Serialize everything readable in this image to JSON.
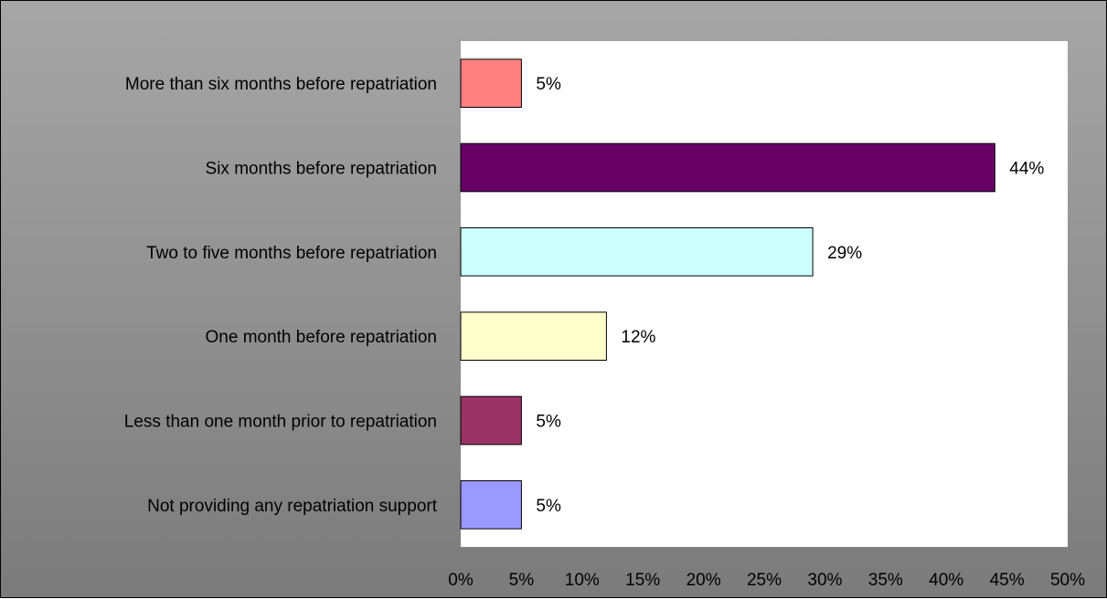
{
  "chart_data": {
    "type": "bar",
    "orientation": "horizontal",
    "categories": [
      "More than six months before repatriation",
      "Six months before repatriation",
      "Two to five months before repatriation",
      "One month before repatriation",
      "Less than one month prior to repatriation",
      "Not providing any repatriation support"
    ],
    "values": [
      5,
      44,
      29,
      12,
      5,
      5
    ],
    "value_labels": [
      "5%",
      "44%",
      "29%",
      "12%",
      "5%",
      "5%"
    ],
    "colors": [
      "#ff8080",
      "#660066",
      "#ccffff",
      "#ffffcc",
      "#993366",
      "#9999ff"
    ],
    "xlim": [
      0,
      50
    ],
    "xticks": [
      "0%",
      "5%",
      "10%",
      "15%",
      "20%",
      "25%",
      "30%",
      "35%",
      "40%",
      "45%",
      "50%"
    ],
    "grid": false,
    "legend": "none",
    "plot_background": "#ffffff",
    "chart_background": "#999999"
  }
}
